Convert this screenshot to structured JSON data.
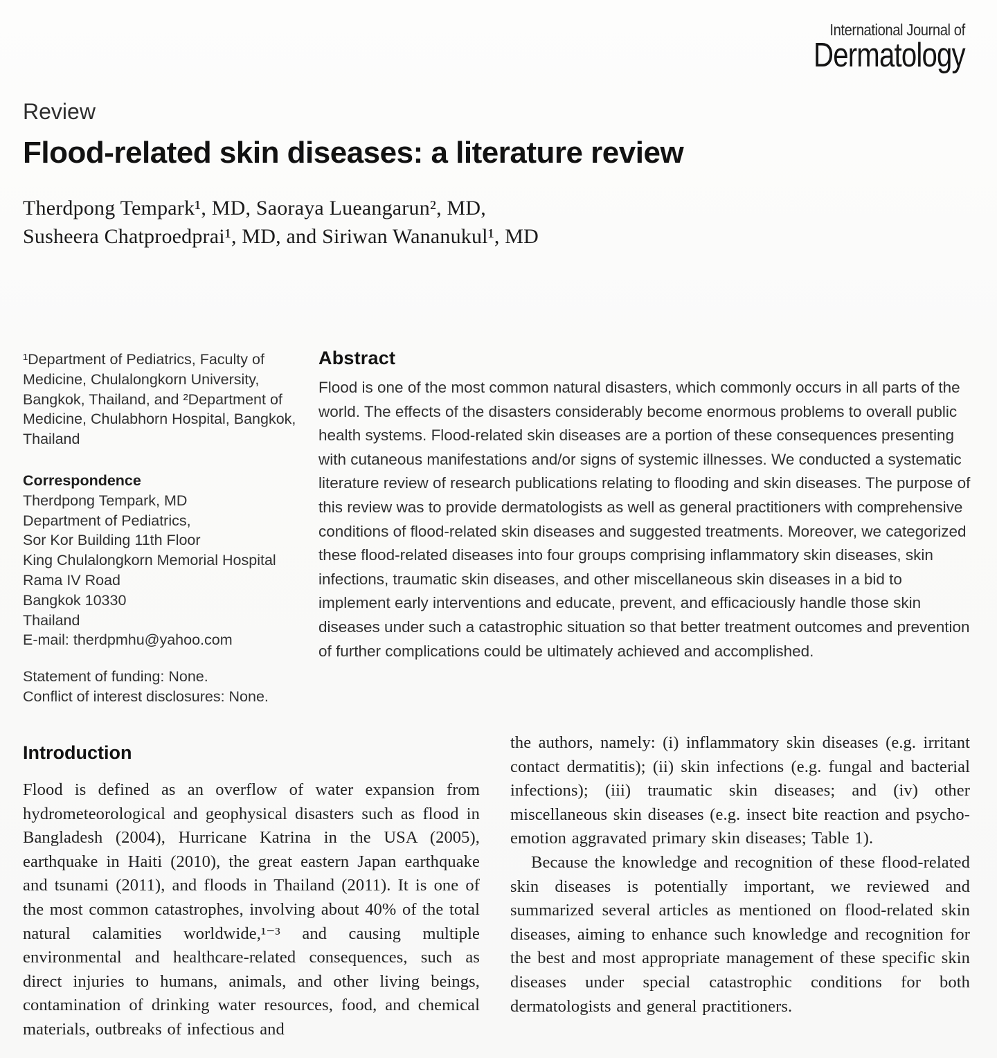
{
  "journal": {
    "masthead_line1": "International Journal of",
    "masthead_line2": "Dermatology"
  },
  "article": {
    "section_label": "Review",
    "title": "Flood-related skin diseases: a literature review",
    "author_lines": [
      "Therdpong Tempark¹, MD, Saoraya Lueangarun², MD,",
      "Susheera Chatproedprai¹, MD, and Siriwan Wananukul¹, MD"
    ]
  },
  "sidebar": {
    "affiliations": "¹Department of Pediatrics, Faculty of Medicine, Chulalongkorn University, Bangkok, Thailand, and ²Department of Medicine, Chulabhorn Hospital, Bangkok, Thailand",
    "correspondence_heading": "Correspondence",
    "correspondence_lines": [
      "Therdpong Tempark, MD",
      "Department of Pediatrics,",
      "Sor Kor Building 11th Floor",
      "King Chulalongkorn Memorial Hospital",
      "Rama IV Road",
      "Bangkok 10330",
      "Thailand",
      "E-mail: therdpmhu@yahoo.com"
    ],
    "funding_statement": "Statement of funding: None.",
    "conflict_statement": "Conflict of interest disclosures: None."
  },
  "abstract": {
    "heading": "Abstract",
    "body": "Flood is one of the most common natural disasters, which commonly occurs in all parts of the world. The effects of the disasters considerably become enormous problems to overall public health systems. Flood-related skin diseases are a portion of these consequences presenting with cutaneous manifestations and/or signs of systemic illnesses. We conducted a systematic literature review of research publications relating to flooding and skin diseases. The purpose of this review was to provide dermatologists as well as general practitioners with comprehensive conditions of flood-related skin diseases and suggested treatments. Moreover, we categorized these flood-related diseases into four groups comprising inflammatory skin diseases, skin infections, traumatic skin diseases, and other miscellaneous skin diseases in a bid to implement early interventions and educate, prevent, and efficaciously handle those skin diseases under such a catastrophic situation so that better treatment outcomes and prevention of further complications could be ultimately achieved and accomplished."
  },
  "introduction": {
    "heading": "Introduction",
    "col1_paragraph": "Flood is defined as an overflow of water expansion from hydrometeorological and geophysical disasters such as flood in Bangladesh (2004), Hurricane Katrina in the USA (2005), earthquake in Haiti (2010), the great eastern Japan earthquake and tsunami (2011), and floods in Thailand (2011). It is one of the most common catastrophes, involving about 40% of the total natural calamities worldwide,¹⁻³ and causing multiple environmental and healthcare-related consequences, such as direct injuries to humans, animals, and other living beings, contamination of drinking water resources, food, and chemical materials, outbreaks of infectious and",
    "col2_paragraph1": "the authors, namely: (i) inflammatory skin diseases (e.g. irritant contact dermatitis); (ii) skin infections (e.g. fungal and bacterial infections); (iii) traumatic skin diseases; and (iv) other miscellaneous skin diseases (e.g. insect bite reaction and psycho-emotion aggravated primary skin diseases; Table 1).",
    "col2_paragraph2": "Because the knowledge and recognition of these flood-related skin diseases is potentially important, we reviewed and summarized several articles as mentioned on flood-related skin diseases, aiming to enhance such knowledge and recognition for the best and most appropriate management of these specific skin diseases under special catastrophic conditions for both dermatologists and general practitioners."
  }
}
